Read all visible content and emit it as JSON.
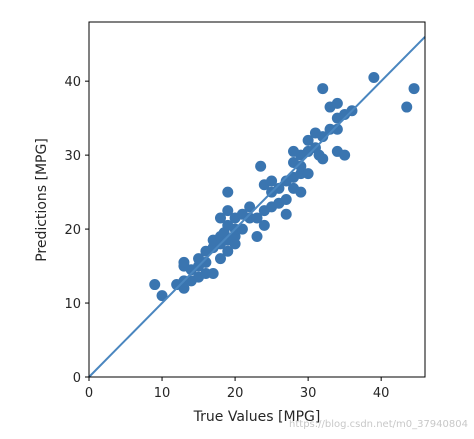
{
  "chart_data": {
    "type": "scatter",
    "title": "",
    "xlabel": "True Values [MPG]",
    "ylabel": "Predictions [MPG]",
    "xlim": [
      0,
      46
    ],
    "ylim": [
      0,
      48
    ],
    "xticks": [
      0,
      10,
      20,
      30,
      40
    ],
    "yticks": [
      0,
      10,
      20,
      30,
      40
    ],
    "grid": false,
    "point_color": "#3a75b0",
    "line_color": "#4a86bf",
    "reference_line": {
      "from": [
        0,
        0
      ],
      "to": [
        46,
        46
      ]
    },
    "points": [
      [
        9,
        12.5
      ],
      [
        10,
        11
      ],
      [
        12,
        12.5
      ],
      [
        13,
        12
      ],
      [
        13,
        13
      ],
      [
        13,
        15
      ],
      [
        13,
        15.5
      ],
      [
        14,
        13
      ],
      [
        14,
        14.5
      ],
      [
        15,
        13.5
      ],
      [
        15,
        15
      ],
      [
        15,
        16
      ],
      [
        16,
        14
      ],
      [
        16,
        15.5
      ],
      [
        16,
        17
      ],
      [
        17,
        14
      ],
      [
        17,
        17.5
      ],
      [
        17,
        18.5
      ],
      [
        18,
        16
      ],
      [
        18,
        18
      ],
      [
        18,
        19
      ],
      [
        18,
        21.5
      ],
      [
        18.5,
        19.5
      ],
      [
        19,
        17
      ],
      [
        19,
        18.5
      ],
      [
        19,
        20.5
      ],
      [
        19,
        22.5
      ],
      [
        19,
        25
      ],
      [
        20,
        18
      ],
      [
        20,
        19
      ],
      [
        20,
        20
      ],
      [
        20,
        21.5
      ],
      [
        21,
        20
      ],
      [
        21,
        22
      ],
      [
        22,
        21.5
      ],
      [
        22,
        23
      ],
      [
        23,
        19
      ],
      [
        23,
        21.5
      ],
      [
        24,
        20.5
      ],
      [
        24,
        22.5
      ],
      [
        24,
        26
      ],
      [
        23.5,
        28.5
      ],
      [
        25,
        23
      ],
      [
        25,
        25
      ],
      [
        25,
        26.5
      ],
      [
        26,
        23.5
      ],
      [
        26,
        25.5
      ],
      [
        27,
        22
      ],
      [
        27,
        24
      ],
      [
        27,
        26.5
      ],
      [
        28,
        25.5
      ],
      [
        28,
        27
      ],
      [
        28,
        29
      ],
      [
        28,
        30.5
      ],
      [
        29,
        25
      ],
      [
        29,
        27.5
      ],
      [
        29,
        28.5
      ],
      [
        29,
        30
      ],
      [
        30,
        27.5
      ],
      [
        30,
        30.5
      ],
      [
        30,
        32
      ],
      [
        31,
        31
      ],
      [
        31,
        33
      ],
      [
        31.5,
        30
      ],
      [
        32,
        29.5
      ],
      [
        32,
        32.5
      ],
      [
        32,
        39
      ],
      [
        33,
        33.5
      ],
      [
        33,
        36.5
      ],
      [
        34,
        30.5
      ],
      [
        34,
        33.5
      ],
      [
        34,
        35
      ],
      [
        34,
        37
      ],
      [
        35,
        30
      ],
      [
        35,
        35.5
      ],
      [
        36,
        36
      ],
      [
        39,
        40.5
      ],
      [
        43.5,
        36.5
      ],
      [
        44.5,
        39
      ]
    ]
  },
  "watermark": "https://blog.csdn.net/m0_37940804"
}
